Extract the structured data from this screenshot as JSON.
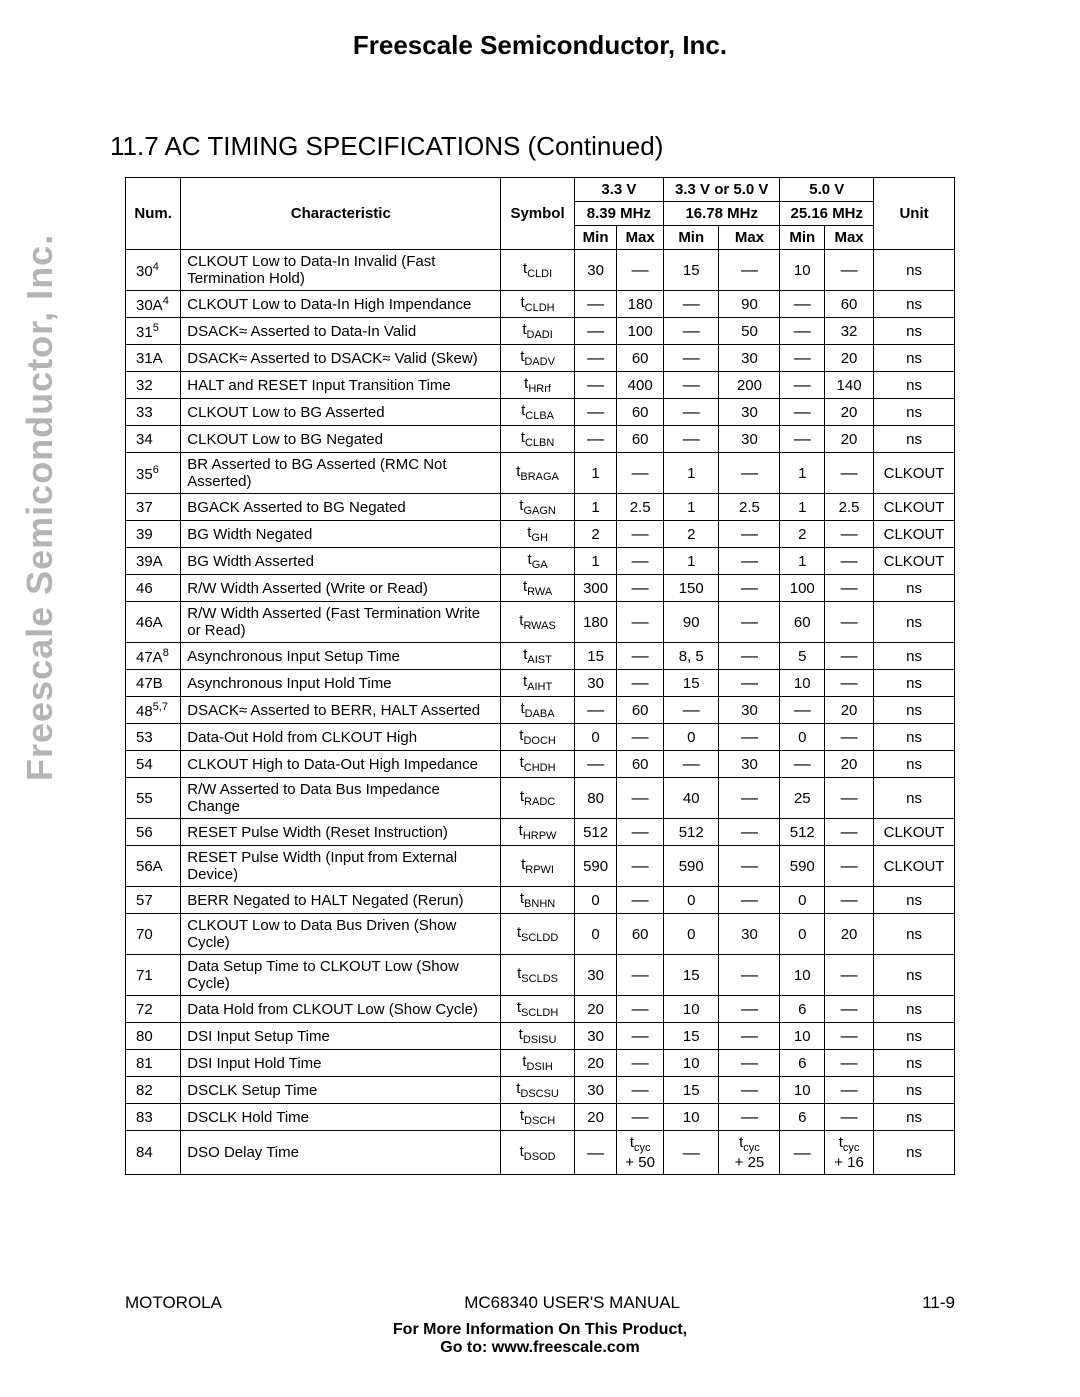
{
  "header_company": "Freescale Semiconductor, Inc.",
  "watermark_text": "Freescale Semiconductor, Inc.",
  "section_title": "11.7 AC TIMING SPECIFICATIONS (Continued)",
  "col_voltage_33": "3.3 V",
  "col_voltage_33_50": "3.3 V or 5.0 V",
  "col_voltage_50": "5.0 V",
  "freq_839": "8.39 MHz",
  "freq_1678": "16.78 MHz",
  "freq_2516": "25.16 MHz",
  "hdr_num": "Num.",
  "hdr_char": "Characteristic",
  "hdr_sym": "Symbol",
  "hdr_min": "Min",
  "hdr_max": "Max",
  "hdr_unit": "Unit",
  "rows": [
    {
      "num": "30",
      "sup": "4",
      "char": "CLKOUT Low to Data-In Invalid (Fast Termination Hold)",
      "sym_pre": "t",
      "sym_sub": "CLDI",
      "v": [
        "30",
        "—",
        "15",
        "—",
        "10",
        "—"
      ],
      "unit": "ns"
    },
    {
      "num": "30A",
      "sup": "4",
      "char": "CLKOUT Low to Data-In High Impendance",
      "sym_pre": "t",
      "sym_sub": "CLDH",
      "v": [
        "—",
        "180",
        "—",
        "90",
        "—",
        "60"
      ],
      "unit": "ns"
    },
    {
      "num": "31",
      "sup": "5",
      "char": "DSACK≈ Asserted to Data-In Valid",
      "sym_pre": "t",
      "sym_sub": "DADI",
      "v": [
        "—",
        "100",
        "—",
        "50",
        "—",
        "32"
      ],
      "unit": "ns"
    },
    {
      "num": "31A",
      "sup": "",
      "char": "DSACK≈ Asserted to DSACK≈ Valid (Skew)",
      "sym_pre": "t",
      "sym_sub": "DADV",
      "v": [
        "—",
        "60",
        "—",
        "30",
        "—",
        "20"
      ],
      "unit": "ns"
    },
    {
      "num": "32",
      "sup": "",
      "char": "HALT and RESET Input Transition Time",
      "sym_pre": "t",
      "sym_sub": "HRrf",
      "v": [
        "—",
        "400",
        "—",
        "200",
        "—",
        "140"
      ],
      "unit": "ns"
    },
    {
      "num": "33",
      "sup": "",
      "char": "CLKOUT Low to BG Asserted",
      "sym_pre": "t",
      "sym_sub": "CLBA",
      "v": [
        "—",
        "60",
        "—",
        "30",
        "—",
        "20"
      ],
      "unit": "ns"
    },
    {
      "num": "34",
      "sup": "",
      "char": "CLKOUT Low to BG Negated",
      "sym_pre": "t",
      "sym_sub": "CLBN",
      "v": [
        "—",
        "60",
        "—",
        "30",
        "—",
        "20"
      ],
      "unit": "ns"
    },
    {
      "num": "35",
      "sup": "6",
      "char": "BR Asserted to BG Asserted (RMC Not Asserted)",
      "sym_pre": "t",
      "sym_sub": "BRAGA",
      "v": [
        "1",
        "—",
        "1",
        "—",
        "1",
        "—"
      ],
      "unit": "CLKOUT"
    },
    {
      "num": "37",
      "sup": "",
      "char": "BGACK Asserted to BG Negated",
      "sym_pre": "t",
      "sym_sub": "GAGN",
      "v": [
        "1",
        "2.5",
        "1",
        "2.5",
        "1",
        "2.5"
      ],
      "unit": "CLKOUT"
    },
    {
      "num": "39",
      "sup": "",
      "char": "BG Width Negated",
      "sym_pre": "t",
      "sym_sub": "GH",
      "v": [
        "2",
        "—",
        "2",
        "—",
        "2",
        "—"
      ],
      "unit": "CLKOUT"
    },
    {
      "num": "39A",
      "sup": "",
      "char": "BG Width Asserted",
      "sym_pre": "t",
      "sym_sub": "GA",
      "v": [
        "1",
        "—",
        "1",
        "—",
        "1",
        "—"
      ],
      "unit": "CLKOUT"
    },
    {
      "num": "46",
      "sup": "",
      "char": "R/W Width Asserted (Write or Read)",
      "sym_pre": "t",
      "sym_sub": "RWA",
      "v": [
        "300",
        "—",
        "150",
        "—",
        "100",
        "—"
      ],
      "unit": "ns"
    },
    {
      "num": "46A",
      "sup": "",
      "char": "R/W Width Asserted (Fast Termination Write or Read)",
      "sym_pre": "t",
      "sym_sub": "RWAS",
      "v": [
        "180",
        "—",
        "90",
        "—",
        "60",
        "—"
      ],
      "unit": "ns"
    },
    {
      "num": "47A",
      "sup": "8",
      "char": "Asynchronous Input Setup Time",
      "sym_pre": "t",
      "sym_sub": "AIST",
      "v": [
        "15",
        "—",
        "8, 5",
        "—",
        "5",
        "—"
      ],
      "unit": "ns"
    },
    {
      "num": "47B",
      "sup": "",
      "char": "Asynchronous Input Hold Time",
      "sym_pre": "t",
      "sym_sub": "AIHT",
      "v": [
        "30",
        "—",
        "15",
        "—",
        "10",
        "—"
      ],
      "unit": "ns"
    },
    {
      "num": "48",
      "sup": "5,7",
      "char": "DSACK≈ Asserted to BERR, HALT Asserted",
      "sym_pre": "t",
      "sym_sub": "DABA",
      "v": [
        "—",
        "60",
        "—",
        "30",
        "—",
        "20"
      ],
      "unit": "ns"
    },
    {
      "num": "53",
      "sup": "",
      "char": "Data-Out Hold from CLKOUT High",
      "sym_pre": "t",
      "sym_sub": "DOCH",
      "v": [
        "0",
        "—",
        "0",
        "—",
        "0",
        "—"
      ],
      "unit": "ns"
    },
    {
      "num": "54",
      "sup": "",
      "char": "CLKOUT High to Data-Out High Impedance",
      "sym_pre": "t",
      "sym_sub": "CHDH",
      "v": [
        "—",
        "60",
        "—",
        "30",
        "—",
        "20"
      ],
      "unit": "ns"
    },
    {
      "num": "55",
      "sup": "",
      "char": "R/W Asserted to Data Bus Impedance Change",
      "sym_pre": "t",
      "sym_sub": "RADC",
      "v": [
        "80",
        "—",
        "40",
        "—",
        "25",
        "—"
      ],
      "unit": "ns"
    },
    {
      "num": "56",
      "sup": "",
      "char": "RESET Pulse Width (Reset Instruction)",
      "sym_pre": "t",
      "sym_sub": "HRPW",
      "v": [
        "512",
        "—",
        "512",
        "—",
        "512",
        "—"
      ],
      "unit": "CLKOUT"
    },
    {
      "num": "56A",
      "sup": "",
      "char": "RESET Pulse Width (Input from External Device)",
      "sym_pre": "t",
      "sym_sub": "RPWI",
      "v": [
        "590",
        "—",
        "590",
        "—",
        "590",
        "—"
      ],
      "unit": "CLKOUT"
    },
    {
      "num": "57",
      "sup": "",
      "char": "BERR Negated to HALT Negated (Rerun)",
      "sym_pre": "t",
      "sym_sub": "BNHN",
      "v": [
        "0",
        "—",
        "0",
        "—",
        "0",
        "—"
      ],
      "unit": "ns"
    },
    {
      "num": "70",
      "sup": "",
      "char": "CLKOUT Low to Data Bus Driven (Show Cycle)",
      "sym_pre": "t",
      "sym_sub": "SCLDD",
      "v": [
        "0",
        "60",
        "0",
        "30",
        "0",
        "20"
      ],
      "unit": "ns"
    },
    {
      "num": "71",
      "sup": "",
      "char": "Data Setup Time to CLKOUT Low (Show Cycle)",
      "sym_pre": "t",
      "sym_sub": "SCLDS",
      "v": [
        "30",
        "—",
        "15",
        "—",
        "10",
        "—"
      ],
      "unit": "ns"
    },
    {
      "num": "72",
      "sup": "",
      "char": "Data Hold from CLKOUT Low (Show Cycle)",
      "sym_pre": "t",
      "sym_sub": "SCLDH",
      "v": [
        "20",
        "—",
        "10",
        "—",
        "6",
        "—"
      ],
      "unit": "ns"
    },
    {
      "num": "80",
      "sup": "",
      "char": "DSI Input Setup Time",
      "sym_pre": "t",
      "sym_sub": "DSISU",
      "v": [
        "30",
        "—",
        "15",
        "—",
        "10",
        "—"
      ],
      "unit": "ns"
    },
    {
      "num": "81",
      "sup": "",
      "char": "DSI Input Hold Time",
      "sym_pre": "t",
      "sym_sub": "DSIH",
      "v": [
        "20",
        "—",
        "10",
        "—",
        "6",
        "—"
      ],
      "unit": "ns"
    },
    {
      "num": "82",
      "sup": "",
      "char": "DSCLK Setup Time",
      "sym_pre": "t",
      "sym_sub": "DSCSU",
      "v": [
        "30",
        "—",
        "15",
        "—",
        "10",
        "—"
      ],
      "unit": "ns"
    },
    {
      "num": "83",
      "sup": "",
      "char": "DSCLK Hold Time",
      "sym_pre": "t",
      "sym_sub": "DSCH",
      "v": [
        "20",
        "—",
        "10",
        "—",
        "6",
        "—"
      ],
      "unit": "ns"
    },
    {
      "num": "84",
      "sup": "",
      "char": "DSO Delay Time",
      "sym_pre": "t",
      "sym_sub": "DSOD",
      "v": [
        "—",
        "tcyc + 50",
        "—",
        "tcyc + 25",
        "—",
        "tcyc + 16"
      ],
      "unit": "ns"
    }
  ],
  "footer_left": "MOTOROLA",
  "footer_center": "MC68340 USER'S MANUAL",
  "footer_right": "11-9",
  "footer_info1": "For More Information On This Product,",
  "footer_info2": "Go to: www.freescale.com"
}
